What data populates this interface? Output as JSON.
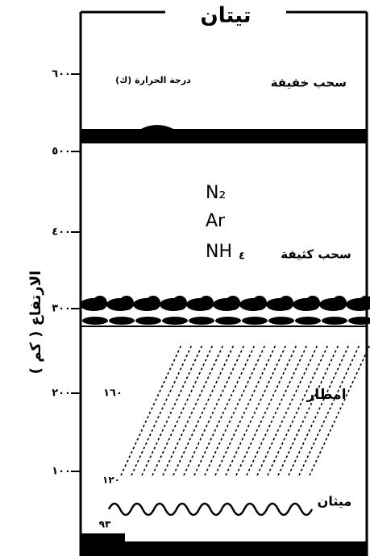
{
  "title": "تيتان",
  "axis": {
    "label": "الارتفاع ( كم )",
    "ticks": [
      "٦٠٠",
      "٥٠٠",
      "٤٠٠",
      "٣٠٠",
      "٢٠٠",
      "١٠٠"
    ]
  },
  "labels": {
    "temperature": "درجة الحرارة (ك)",
    "thin_clouds": "سحب خفيفة",
    "n2": "N₂",
    "ar": "Ar",
    "nh": "NH",
    "nh_digit": "٤",
    "thick_clouds": "سحب كثيفة",
    "temp_top": "١٦٠",
    "rain": "امطار",
    "temp_mid": "١٢٠",
    "methane": "ميثان",
    "temp_bottom": "٩٣"
  }
}
